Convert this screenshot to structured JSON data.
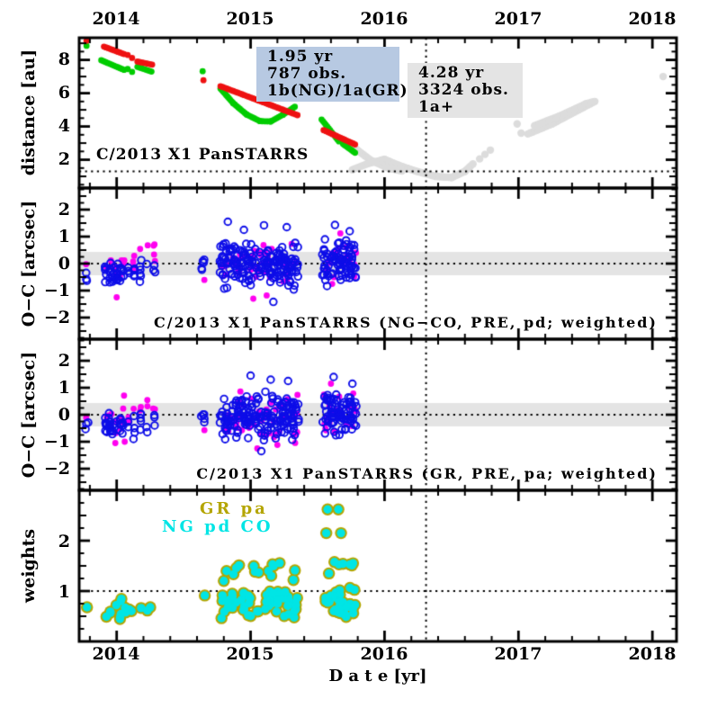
{
  "colors": {
    "red": "#ee1111",
    "green": "#00cc00",
    "gray": "#dcdcdc",
    "blue": "#0d0de8",
    "magenta": "#ff00f0",
    "cyan": "#00e5e5",
    "olive": "#b4a500",
    "band": "#e4e4e4",
    "box_blue": "#b7c9e2",
    "box_gray": "#e4e4e4"
  },
  "axes": {
    "top_years": [
      "2014",
      "2015",
      "2016",
      "2017",
      "2018"
    ],
    "bottom_years": [
      "2014",
      "2015",
      "2016",
      "2017",
      "2018"
    ],
    "xlabel": "D a t e  [yr]",
    "p1_ylabel": "distance [au]",
    "p2_ylabel": "O−C [arcsec]",
    "p3_ylabel": "O−C [arcsec]",
    "p4_ylabel": "weights",
    "p1_yticks": [
      "8",
      "6",
      "4",
      "2"
    ],
    "p2_yticks": [
      "2",
      "1",
      "0",
      "−1",
      "−2"
    ],
    "p3_yticks": [
      "2",
      "1",
      "0",
      "−1",
      "−2"
    ],
    "p4_yticks": [
      "2",
      "1"
    ]
  },
  "panel1": {
    "object_label": "C/2013 X1 PanSTARRS",
    "box_blue": {
      "lines": [
        "1.95 yr",
        "787 obs.",
        "1b(NG)/1a(GR)"
      ]
    },
    "box_gray": {
      "lines": [
        "4.28 yr",
        "3324 obs.",
        "1a+"
      ]
    }
  },
  "panel2": {
    "title": "C/2013 X1 PanSTARRS (NG−CO, PRE, pd; weighted)"
  },
  "panel3": {
    "title": "C/2013 X1 PanSTARRS (GR, PRE, pa; weighted)"
  },
  "panel4": {
    "legend_gr": "GR pa",
    "legend_ng": "NG pd CO"
  },
  "chart_data": [
    {
      "type": "scatter",
      "name": "heliocentric distance vs date",
      "ylabel": "distance [au]",
      "xlim": [
        2013.72,
        2018.18
      ],
      "ylim": [
        0.3,
        9.33
      ],
      "hline_au": 1.3,
      "vline_year": 2016.31,
      "label": "C/2013 X1 PanSTARRS",
      "annotations": [
        {
          "text": "1.95 yr | 787 obs. | 1b(NG)/1a(GR)"
        },
        {
          "text": "4.28 yr | 3324 obs. | 1a+"
        }
      ],
      "series": [
        {
          "name": "orbit-1a-plus-prediction",
          "color": "gray",
          "r": 4.2,
          "gap": 3,
          "segments": [
            [
              [
                2015.73,
                3.0
              ],
              [
                2015.9,
                1.95
              ],
              [
                2016.03,
                1.5
              ],
              [
                2016.13,
                1.32
              ]
            ],
            [
              [
                2015.76,
                1.4
              ],
              [
                2015.88,
                1.78
              ],
              [
                2016.0,
                2.02
              ],
              [
                2016.12,
                1.62
              ],
              [
                2016.25,
                1.28
              ],
              [
                2016.38,
                1.0
              ],
              [
                2016.5,
                0.93
              ],
              [
                2016.6,
                1.3
              ],
              [
                2016.66,
                1.75
              ]
            ],
            [
              [
                2016.71,
                2.05
              ]
            ],
            [
              [
                2016.75,
                2.32
              ]
            ],
            [
              [
                2016.79,
                2.58
              ]
            ],
            [
              [
                2016.99,
                4.15
              ]
            ],
            [
              [
                2017.02,
                3.6
              ]
            ],
            [
              [
                2017.07,
                3.55
              ],
              [
                2017.25,
                4.15
              ],
              [
                2017.45,
                5.0
              ],
              [
                2017.57,
                5.5
              ]
            ],
            [
              [
                2017.12,
                4.05
              ],
              [
                2017.3,
                4.6
              ],
              [
                2017.5,
                5.35
              ],
              [
                2017.56,
                5.48
              ]
            ],
            [
              [
                2018.08,
                7.0
              ]
            ]
          ]
        },
        {
          "name": "orbit-1a-GR",
          "color": "green",
          "r": 3.4,
          "gap": 2.6,
          "segments": [
            [
              [
                2013.775,
                8.85
              ]
            ],
            [
              [
                2013.885,
                7.98
              ],
              [
                2014.055,
                7.4
              ]
            ],
            [
              [
                2014.082,
                7.45
              ]
            ],
            [
              [
                2014.115,
                7.28
              ]
            ],
            [
              [
                2014.155,
                7.58
              ],
              [
                2014.26,
                7.3
              ]
            ],
            [
              [
                2014.642,
                7.32
              ]
            ],
            [
              [
                2014.775,
                6.28
              ],
              [
                2014.87,
                5.4
              ],
              [
                2014.97,
                4.72
              ],
              [
                2015.07,
                4.32
              ],
              [
                2015.15,
                4.3
              ],
              [
                2015.24,
                4.7
              ],
              [
                2015.33,
                5.18
              ]
            ],
            [
              [
                2015.53,
                4.42
              ],
              [
                2015.66,
                3.1
              ]
            ],
            [
              [
                2015.69,
                2.95
              ],
              [
                2015.78,
                2.42
              ]
            ]
          ]
        },
        {
          "name": "orbit-1b-NG",
          "color": "red",
          "r": 3.4,
          "gap": 2.6,
          "segments": [
            [
              [
                2013.775,
                9.15
              ]
            ],
            [
              [
                2013.905,
                8.8
              ],
              [
                2014.055,
                8.35
              ]
            ],
            [
              [
                2014.082,
                8.3
              ]
            ],
            [
              [
                2014.115,
                8.12
              ]
            ],
            [
              [
                2014.155,
                7.9
              ],
              [
                2014.265,
                7.72
              ]
            ],
            [
              [
                2014.648,
                6.78
              ]
            ],
            [
              [
                2014.775,
                6.42
              ],
              [
                2015.35,
                4.68
              ]
            ],
            [
              [
                2015.545,
                3.78
              ],
              [
                2015.78,
                2.92
              ]
            ]
          ]
        }
      ]
    },
    {
      "type": "scatter",
      "name": "O-C residuals (NG-CO, PRE, pd; weighted)",
      "title": "C/2013 X1 PanSTARRS (NG−CO, PRE, pd; weighted)",
      "ylabel": "O−C [arcsec]",
      "ylim": [
        -2.8,
        2.8
      ],
      "band": [
        -0.43,
        0.43
      ],
      "hline": 0,
      "vline_year": 2016.31,
      "clusters": {
        "magenta": [
          [
            2013.765,
            2013.79,
            1,
            -0.12,
            0.02,
            0
          ],
          [
            2013.93,
            2014.03,
            9,
            -0.75,
            0.35,
            4
          ],
          [
            2014.05,
            2014.13,
            6,
            -0.6,
            0.7,
            3
          ],
          [
            2014.18,
            2014.28,
            6,
            -0.25,
            0.85,
            3
          ],
          [
            2014.64,
            2014.66,
            1,
            -0.68,
            -0.55,
            0
          ],
          [
            2014.78,
            2015.36,
            46,
            -1.2,
            1.0,
            0
          ],
          [
            2015.54,
            2015.79,
            20,
            -0.95,
            1.05,
            0
          ]
        ],
        "blue": [
          [
            2013.765,
            2013.79,
            3,
            -0.72,
            -0.3,
            0
          ],
          [
            2013.92,
            2014.03,
            28,
            -0.9,
            0.12,
            5
          ],
          [
            2014.05,
            2014.13,
            9,
            -1.05,
            0.15,
            3
          ],
          [
            2014.18,
            2014.28,
            10,
            -0.85,
            0.3,
            3
          ],
          [
            2014.63,
            2014.66,
            5,
            -0.52,
            0.4,
            0
          ],
          [
            2014.77,
            2015.36,
            170,
            -1.02,
            0.92,
            0
          ],
          [
            2015.53,
            2015.79,
            80,
            -0.92,
            0.95,
            0
          ]
        ],
        "magenta_single": [
          [
            2014.0,
            -1.25
          ],
          [
            2015.02,
            -1.3
          ],
          [
            2015.12,
            -1.18
          ],
          [
            2015.67,
            1.12
          ]
        ],
        "blue_single": [
          [
            2014.83,
            1.55
          ],
          [
            2014.95,
            1.25
          ],
          [
            2015.1,
            1.42
          ],
          [
            2015.27,
            1.35
          ],
          [
            2015.17,
            -1.42
          ],
          [
            2015.63,
            1.43
          ],
          [
            2015.74,
            1.2
          ]
        ]
      }
    },
    {
      "type": "scatter",
      "name": "O-C residuals (GR, PRE, pa; weighted)",
      "title": "C/2013 X1 PanSTARRS (GR, PRE, pa; weighted)",
      "ylabel": "O−C [arcsec]",
      "ylim": [
        -2.8,
        2.8
      ],
      "band": [
        -0.43,
        0.43
      ],
      "hline": 0,
      "vline_year": 2016.31,
      "clusters": {
        "magenta": [
          [
            2013.765,
            2013.79,
            1,
            -0.15,
            0.0,
            0
          ],
          [
            2013.93,
            2014.03,
            9,
            -0.8,
            0.3,
            4
          ],
          [
            2014.05,
            2014.13,
            6,
            -0.55,
            0.8,
            3
          ],
          [
            2014.18,
            2014.28,
            6,
            -0.25,
            0.8,
            3
          ],
          [
            2014.64,
            2014.66,
            1,
            -0.66,
            -0.52,
            0
          ],
          [
            2014.78,
            2015.36,
            46,
            -1.15,
            1.0,
            0
          ],
          [
            2015.54,
            2015.79,
            20,
            -0.95,
            1.05,
            0
          ]
        ],
        "blue": [
          [
            2013.765,
            2013.79,
            3,
            -0.7,
            -0.28,
            0
          ],
          [
            2013.92,
            2014.03,
            28,
            -0.88,
            0.12,
            5
          ],
          [
            2014.05,
            2014.13,
            9,
            -1.0,
            0.15,
            3
          ],
          [
            2014.18,
            2014.28,
            10,
            -0.82,
            0.3,
            3
          ],
          [
            2014.63,
            2014.66,
            5,
            -0.5,
            0.38,
            0
          ],
          [
            2014.77,
            2015.36,
            170,
            -1.02,
            0.9,
            0
          ],
          [
            2015.53,
            2015.79,
            80,
            -0.9,
            0.95,
            0
          ]
        ],
        "magenta_single": [
          [
            2013.99,
            -1.05
          ],
          [
            2014.06,
            -1.0
          ],
          [
            2015.05,
            -1.25
          ],
          [
            2015.2,
            -1.12
          ],
          [
            2015.6,
            1.15
          ]
        ],
        "blue_single": [
          [
            2015.0,
            1.45
          ],
          [
            2015.15,
            1.3
          ],
          [
            2015.28,
            1.25
          ],
          [
            2015.08,
            -1.35
          ],
          [
            2015.62,
            1.4
          ],
          [
            2015.76,
            1.15
          ]
        ]
      }
    },
    {
      "type": "scatter",
      "name": "observation weights",
      "ylabel": "weights",
      "ylim": [
        0,
        3.0
      ],
      "hline": 1,
      "vline_year": 2016.31,
      "legend": [
        "GR pa",
        "NG pd CO"
      ],
      "clusters": [
        [
          2013.77,
          2013.79,
          1,
          0.6,
          0.7,
          0
        ],
        [
          2013.92,
          2014.03,
          9,
          0.3,
          0.95,
          4
        ],
        [
          2014.05,
          2014.13,
          4,
          0.55,
          0.8,
          0
        ],
        [
          2014.18,
          2014.28,
          3,
          0.55,
          0.75,
          0
        ],
        [
          2014.64,
          2014.66,
          1,
          0.9,
          0.98,
          0
        ],
        [
          2014.77,
          2015.36,
          58,
          0.42,
          1.1,
          0
        ],
        [
          2014.78,
          2015.35,
          13,
          1.28,
          1.62,
          0
        ],
        [
          2015.55,
          2015.79,
          34,
          0.42,
          1.1,
          0
        ],
        [
          2015.6,
          2015.77,
          6,
          1.45,
          1.6,
          0
        ]
      ],
      "singles": [
        [
          2015.585,
          1.35
        ],
        [
          2015.575,
          2.62
        ],
        [
          2015.655,
          2.62
        ],
        [
          2015.565,
          2.15
        ],
        [
          2015.675,
          2.15
        ],
        [
          2014.8,
          1.2
        ],
        [
          2015.32,
          1.22
        ]
      ]
    }
  ]
}
